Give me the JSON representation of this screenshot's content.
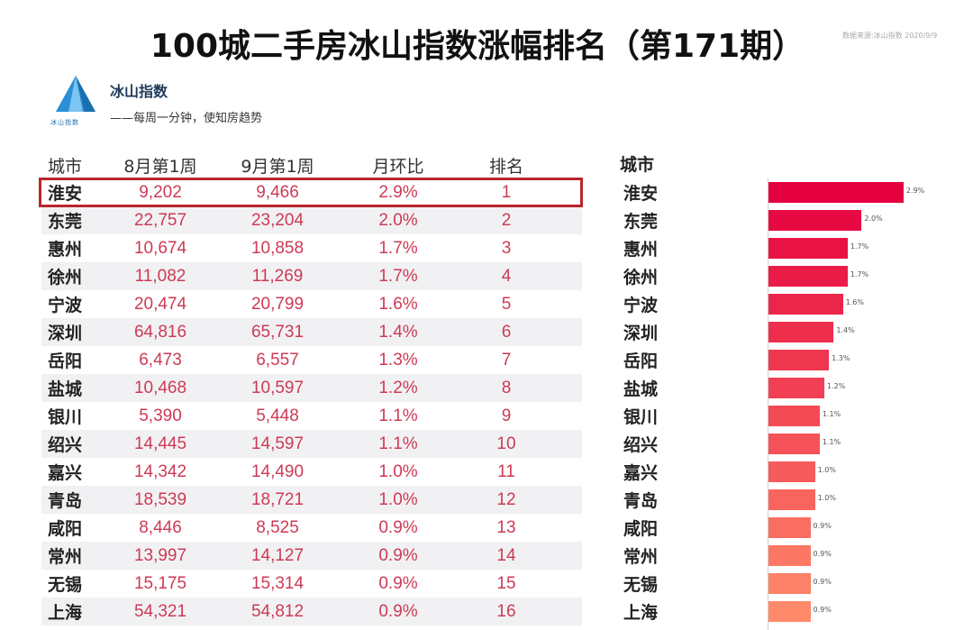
{
  "header": {
    "title": "100城二手房冰山指数涨幅排名（第171期）",
    "source": "数据来源:冰山指数 2020/9/9"
  },
  "brand": {
    "logo_text": "冰山指数",
    "name": "冰山指数",
    "slogan": "——每周一分钟，使知房趋势"
  },
  "table": {
    "columns": [
      "城市",
      "8月第1周",
      "9月第1周",
      "月环比",
      "排名"
    ],
    "rows": [
      {
        "city": "淮安",
        "aug": "9,202",
        "sep": "9,466",
        "mom": "2.9%",
        "rank": "1"
      },
      {
        "city": "东莞",
        "aug": "22,757",
        "sep": "23,204",
        "mom": "2.0%",
        "rank": "2"
      },
      {
        "city": "惠州",
        "aug": "10,674",
        "sep": "10,858",
        "mom": "1.7%",
        "rank": "3"
      },
      {
        "city": "徐州",
        "aug": "11,082",
        "sep": "11,269",
        "mom": "1.7%",
        "rank": "4"
      },
      {
        "city": "宁波",
        "aug": "20,474",
        "sep": "20,799",
        "mom": "1.6%",
        "rank": "5"
      },
      {
        "city": "深圳",
        "aug": "64,816",
        "sep": "65,731",
        "mom": "1.4%",
        "rank": "6"
      },
      {
        "city": "岳阳",
        "aug": "6,473",
        "sep": "6,557",
        "mom": "1.3%",
        "rank": "7"
      },
      {
        "city": "盐城",
        "aug": "10,468",
        "sep": "10,597",
        "mom": "1.2%",
        "rank": "8"
      },
      {
        "city": "银川",
        "aug": "5,390",
        "sep": "5,448",
        "mom": "1.1%",
        "rank": "9"
      },
      {
        "city": "绍兴",
        "aug": "14,445",
        "sep": "14,597",
        "mom": "1.1%",
        "rank": "10"
      },
      {
        "city": "嘉兴",
        "aug": "14,342",
        "sep": "14,490",
        "mom": "1.0%",
        "rank": "11"
      },
      {
        "city": "青岛",
        "aug": "18,539",
        "sep": "18,721",
        "mom": "1.0%",
        "rank": "12"
      },
      {
        "city": "咸阳",
        "aug": "8,446",
        "sep": "8,525",
        "mom": "0.9%",
        "rank": "13"
      },
      {
        "city": "常州",
        "aug": "13,997",
        "sep": "14,127",
        "mom": "0.9%",
        "rank": "14"
      },
      {
        "city": "无锡",
        "aug": "15,175",
        "sep": "15,314",
        "mom": "0.9%",
        "rank": "15"
      },
      {
        "city": "上海",
        "aug": "54,321",
        "sep": "54,812",
        "mom": "0.9%",
        "rank": "16"
      }
    ]
  },
  "chart_data": {
    "type": "bar",
    "orientation": "horizontal",
    "title": "",
    "category_header": "城市",
    "categories": [
      "淮安",
      "东莞",
      "惠州",
      "徐州",
      "宁波",
      "深圳",
      "岳阳",
      "盐城",
      "银川",
      "绍兴",
      "嘉兴",
      "青岛",
      "咸阳",
      "常州",
      "无锡",
      "上海"
    ],
    "values": [
      2.9,
      2.0,
      1.7,
      1.7,
      1.6,
      1.4,
      1.3,
      1.2,
      1.1,
      1.1,
      1.0,
      1.0,
      0.9,
      0.9,
      0.9,
      0.9
    ],
    "value_labels": [
      "2.9%",
      "2.0%",
      "1.7%",
      "1.7%",
      "1.6%",
      "1.4%",
      "1.3%",
      "1.2%",
      "1.1%",
      "1.1%",
      "1.0%",
      "1.0%",
      "0.9%",
      "0.9%",
      "0.9%",
      "0.9%"
    ],
    "xlim": [
      0,
      3.0
    ],
    "colors": {
      "top": "#e5003f",
      "bottom": "#ff8a6a"
    },
    "grid": false
  },
  "colors": {
    "highlight_border": "#b8262e",
    "value_text": "#cd3a55",
    "row_alt": "#f1f1f3",
    "logo": "#2a8fd6"
  }
}
